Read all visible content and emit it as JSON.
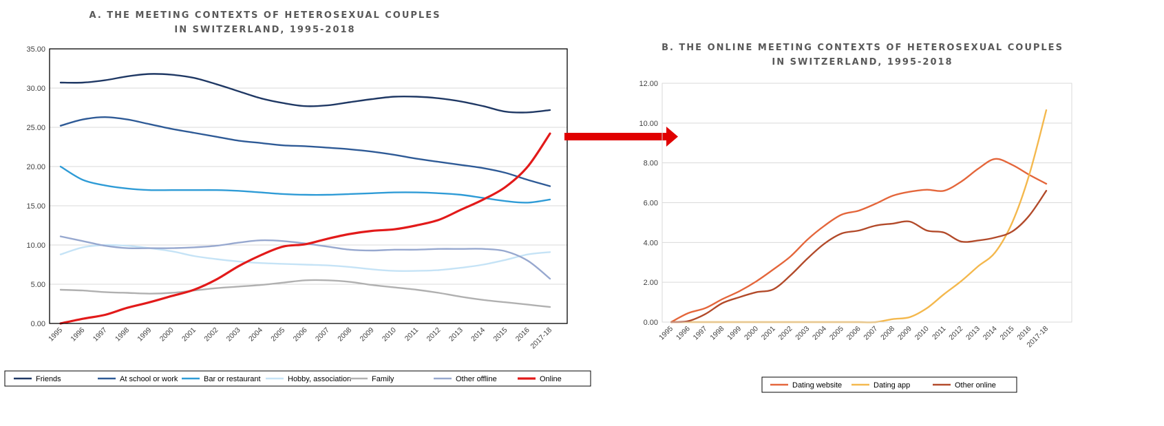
{
  "chart_data": [
    {
      "type": "line",
      "title_line1": "A. THE MEETING CONTEXTS OF HETEROSEXUAL COUPLES",
      "title_line2": "IN SWITZERLAND, 1995-2018",
      "xlabel": "",
      "ylabel": "",
      "ylim": [
        0,
        35
      ],
      "ytick_labels": [
        "0.00",
        "5.00",
        "10.00",
        "15.00",
        "20.00",
        "25.00",
        "30.00",
        "35.00"
      ],
      "categories": [
        "1995",
        "1996",
        "1997",
        "1998",
        "1999",
        "2000",
        "2001",
        "2002",
        "2003",
        "2004",
        "2005",
        "2006",
        "2007",
        "2008",
        "2009",
        "2010",
        "2011",
        "2012",
        "2013",
        "2014",
        "2015",
        "2016",
        "2017-18"
      ],
      "legend_position": "bottom",
      "grid": true,
      "series": [
        {
          "name": "Friends",
          "color": "#1f3864",
          "values": [
            30.7,
            30.7,
            31.0,
            31.5,
            31.8,
            31.7,
            31.3,
            30.5,
            29.6,
            28.7,
            28.1,
            27.7,
            27.8,
            28.2,
            28.6,
            28.9,
            28.9,
            28.7,
            28.3,
            27.7,
            27.0,
            26.9,
            27.2
          ]
        },
        {
          "name": "At school or work",
          "color": "#2e5a96",
          "values": [
            25.2,
            26.0,
            26.3,
            26.0,
            25.4,
            24.8,
            24.3,
            23.8,
            23.3,
            23.0,
            22.7,
            22.6,
            22.4,
            22.2,
            21.9,
            21.5,
            21.0,
            20.6,
            20.2,
            19.8,
            19.2,
            18.3,
            17.5
          ]
        },
        {
          "name": "Bar or restaurant",
          "color": "#2e9bd6",
          "values": [
            20.0,
            18.3,
            17.6,
            17.2,
            17.0,
            17.0,
            17.0,
            17.0,
            16.9,
            16.7,
            16.5,
            16.4,
            16.4,
            16.5,
            16.6,
            16.7,
            16.7,
            16.6,
            16.4,
            16.0,
            15.6,
            15.4,
            15.8
          ]
        },
        {
          "name": "Hobby, association",
          "color": "#c5e3f6",
          "values": [
            8.8,
            9.7,
            10.0,
            9.9,
            9.6,
            9.2,
            8.6,
            8.2,
            7.9,
            7.7,
            7.6,
            7.5,
            7.4,
            7.2,
            6.9,
            6.7,
            6.7,
            6.8,
            7.1,
            7.5,
            8.1,
            8.8,
            9.1
          ]
        },
        {
          "name": "Family",
          "color": "#b0b0b0",
          "values": [
            4.3,
            4.2,
            4.0,
            3.9,
            3.8,
            3.9,
            4.2,
            4.5,
            4.7,
            4.9,
            5.2,
            5.5,
            5.5,
            5.3,
            4.9,
            4.6,
            4.3,
            3.9,
            3.4,
            3.0,
            2.7,
            2.4,
            2.1
          ]
        },
        {
          "name": "Other offline",
          "color": "#97a8cf",
          "values": [
            11.1,
            10.5,
            9.9,
            9.6,
            9.6,
            9.6,
            9.7,
            9.9,
            10.3,
            10.6,
            10.5,
            10.2,
            9.8,
            9.4,
            9.3,
            9.4,
            9.4,
            9.5,
            9.5,
            9.5,
            9.2,
            8.0,
            5.7
          ]
        },
        {
          "name": "Online",
          "color": "#e21a1a",
          "values": [
            0.0,
            0.6,
            1.1,
            2.0,
            2.7,
            3.5,
            4.3,
            5.6,
            7.3,
            8.7,
            9.8,
            10.1,
            10.8,
            11.4,
            11.8,
            12.0,
            12.5,
            13.2,
            14.5,
            15.8,
            17.4,
            20.0,
            24.2
          ]
        }
      ]
    },
    {
      "type": "line",
      "title_line1": "B. THE ONLINE MEETING CONTEXTS OF HETEROSEXUAL COUPLES",
      "title_line2": "IN SWITZERLAND, 1995-2018",
      "xlabel": "",
      "ylabel": "",
      "ylim": [
        0,
        12
      ],
      "ytick_labels": [
        "0.00",
        "2.00",
        "4.00",
        "6.00",
        "8.00",
        "10.00",
        "12.00"
      ],
      "categories": [
        "1995",
        "1996",
        "1997",
        "1998",
        "1999",
        "2000",
        "2001",
        "2002",
        "2003",
        "2004",
        "2005",
        "2006",
        "2007",
        "2008",
        "2009",
        "2010",
        "2011",
        "2012",
        "2013",
        "2014",
        "2015",
        "2016",
        "2017-18"
      ],
      "legend_position": "bottom",
      "grid": true,
      "series": [
        {
          "name": "Dating website",
          "color": "#e4663b",
          "values": [
            0.0,
            0.45,
            0.7,
            1.15,
            1.55,
            2.05,
            2.65,
            3.3,
            4.15,
            4.85,
            5.4,
            5.6,
            5.95,
            6.35,
            6.55,
            6.65,
            6.6,
            7.05,
            7.7,
            8.2,
            7.9,
            7.4,
            6.95
          ]
        },
        {
          "name": "Dating app",
          "color": "#f4b84d",
          "values": [
            0.0,
            0.0,
            0.0,
            0.0,
            0.0,
            0.0,
            0.0,
            0.0,
            0.0,
            0.0,
            0.0,
            0.0,
            0.0,
            0.15,
            0.25,
            0.7,
            1.4,
            2.05,
            2.8,
            3.5,
            5.0,
            7.4,
            10.65
          ]
        },
        {
          "name": "Other online",
          "color": "#b24a2a",
          "values": [
            0.0,
            0.05,
            0.4,
            0.95,
            1.25,
            1.5,
            1.65,
            2.35,
            3.2,
            3.95,
            4.45,
            4.6,
            4.85,
            4.95,
            5.05,
            4.6,
            4.5,
            4.05,
            4.1,
            4.25,
            4.55,
            5.35,
            6.6
          ]
        }
      ]
    }
  ],
  "arrow": {
    "color": "#e00000"
  },
  "colors": {
    "gridline": "#d9d9d9",
    "axis": "#000000",
    "legend_border": "#000000"
  }
}
